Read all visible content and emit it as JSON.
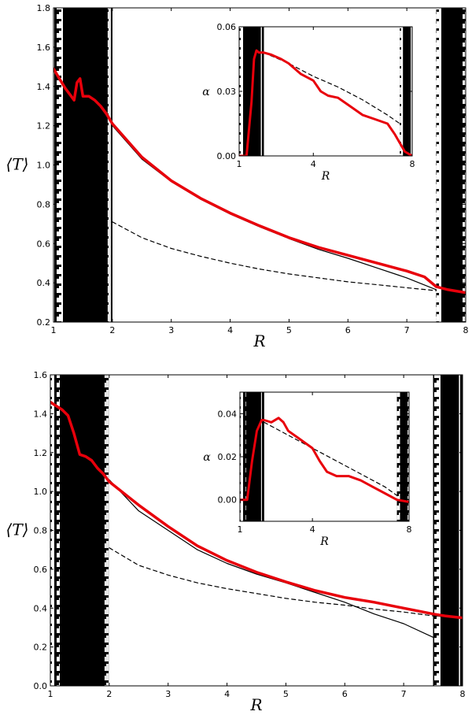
{
  "chart_data": [
    {
      "type": "line",
      "panel": "top",
      "xlabel": "R",
      "ylabel": "⟨T⟩",
      "xlim": [
        1,
        8
      ],
      "ylim": [
        0.2,
        1.8
      ],
      "xticks": [
        "1",
        "2",
        "3",
        "4",
        "5",
        "6",
        "7",
        "8"
      ],
      "yticks": [
        "0.2",
        "0.4",
        "0.6",
        "0.8",
        "1.0",
        "1.2",
        "1.4",
        "1.6",
        "1.8"
      ],
      "shaded_regions": [
        [
          1,
          2
        ],
        [
          7.5,
          8
        ]
      ],
      "series": [
        {
          "style": "solid-black",
          "x": [
            2.0,
            2.5,
            3.0,
            3.5,
            4.0,
            4.5,
            5.0,
            5.5,
            6.0,
            6.5,
            7.0,
            7.5
          ],
          "y": [
            1.2,
            1.03,
            0.915,
            0.825,
            0.75,
            0.685,
            0.625,
            0.57,
            0.525,
            0.475,
            0.425,
            0.365
          ]
        },
        {
          "style": "dashed-black",
          "x": [
            2.0,
            2.5,
            3.0,
            3.5,
            4.0,
            4.5,
            5.0,
            5.5,
            6.0,
            6.5,
            7.0,
            7.5
          ],
          "y": [
            0.71,
            0.63,
            0.575,
            0.535,
            0.5,
            0.47,
            0.445,
            0.425,
            0.405,
            0.39,
            0.375,
            0.36
          ]
        },
        {
          "style": "thick-red",
          "x": [
            1.0,
            1.1,
            1.2,
            1.3,
            1.35,
            1.4,
            1.45,
            1.5,
            1.55,
            1.6,
            1.7,
            1.8,
            1.9,
            2.0,
            2.5,
            3.0,
            3.5,
            4.0,
            4.5,
            5.0,
            5.5,
            6.0,
            6.5,
            7.0,
            7.3,
            7.5,
            7.7,
            8.0
          ],
          "y": [
            1.49,
            1.44,
            1.39,
            1.35,
            1.33,
            1.42,
            1.44,
            1.35,
            1.35,
            1.35,
            1.33,
            1.3,
            1.26,
            1.21,
            1.04,
            0.92,
            0.83,
            0.755,
            0.69,
            0.63,
            0.58,
            0.54,
            0.5,
            0.46,
            0.43,
            0.38,
            0.365,
            0.35
          ]
        }
      ],
      "inset": {
        "xlabel": "R",
        "ylabel": "α",
        "xlim": [
          1,
          8
        ],
        "ylim": [
          0,
          0.06
        ],
        "xticks": [
          "1",
          "4",
          "8"
        ],
        "yticks": [
          "0.00",
          "0.03",
          "0.06"
        ],
        "shaded_regions": [
          [
            1,
            2
          ],
          [
            7.5,
            8
          ]
        ],
        "series": [
          {
            "style": "dashed-black",
            "x": [
              2.0,
              3.0,
              4.0,
              5.0,
              6.0,
              7.0,
              7.5
            ],
            "y": [
              0.048,
              0.043,
              0.037,
              0.032,
              0.026,
              0.019,
              0.015
            ]
          },
          {
            "style": "thick-red",
            "x": [
              1.0,
              1.3,
              1.5,
              1.6,
              1.7,
              1.8,
              2.0,
              2.3,
              2.7,
              3.0,
              3.5,
              4.0,
              4.3,
              4.6,
              5.0,
              5.5,
              6.0,
              6.5,
              7.0,
              7.3,
              7.5,
              7.7,
              8.0
            ],
            "y": [
              0.0,
              0.0,
              0.025,
              0.045,
              0.049,
              0.048,
              0.048,
              0.047,
              0.045,
              0.043,
              0.038,
              0.035,
              0.03,
              0.028,
              0.027,
              0.023,
              0.019,
              0.017,
              0.015,
              0.01,
              0.006,
              0.002,
              0.0
            ]
          }
        ]
      }
    },
    {
      "type": "line",
      "panel": "bottom",
      "xlabel": "R",
      "ylabel": "⟨T⟩",
      "xlim": [
        1,
        8
      ],
      "ylim": [
        0.0,
        1.6
      ],
      "xticks": [
        "1",
        "2",
        "3",
        "4",
        "5",
        "6",
        "7",
        "8"
      ],
      "yticks": [
        "0.0",
        "0.2",
        "0.4",
        "0.6",
        "0.8",
        "1.0",
        "1.2",
        "1.4",
        "1.6"
      ],
      "shaded_regions": [
        [
          1,
          2
        ],
        [
          7.5,
          8
        ]
      ],
      "series": [
        {
          "style": "solid-black",
          "x": [
            2.0,
            2.5,
            3.0,
            3.5,
            4.0,
            4.5,
            5.0,
            5.5,
            6.0,
            6.5,
            7.0,
            7.5
          ],
          "y": [
            1.06,
            0.9,
            0.8,
            0.7,
            0.63,
            0.575,
            0.53,
            0.48,
            0.43,
            0.37,
            0.32,
            0.25
          ]
        },
        {
          "style": "dashed-black",
          "x": [
            2.0,
            2.5,
            3.0,
            3.5,
            4.0,
            4.5,
            5.0,
            5.5,
            6.0,
            6.5,
            7.0,
            7.5,
            8.0
          ],
          "y": [
            0.71,
            0.62,
            0.57,
            0.53,
            0.5,
            0.475,
            0.45,
            0.43,
            0.415,
            0.395,
            0.38,
            0.36,
            0.35
          ]
        },
        {
          "style": "thick-red",
          "x": [
            1.0,
            1.1,
            1.2,
            1.3,
            1.4,
            1.5,
            1.6,
            1.7,
            1.8,
            1.9,
            2.0,
            2.5,
            3.0,
            3.5,
            4.0,
            4.5,
            5.0,
            5.5,
            6.0,
            6.5,
            7.0,
            7.5,
            7.7,
            8.0
          ],
          "y": [
            1.46,
            1.44,
            1.42,
            1.39,
            1.3,
            1.19,
            1.18,
            1.16,
            1.12,
            1.09,
            1.05,
            0.93,
            0.82,
            0.72,
            0.645,
            0.585,
            0.535,
            0.49,
            0.455,
            0.43,
            0.4,
            0.37,
            0.36,
            0.35
          ]
        }
      ],
      "inset": {
        "xlabel": "R",
        "ylabel": "α",
        "xlim": [
          1,
          8
        ],
        "ylim": [
          -0.01,
          0.05
        ],
        "xticks": [
          "1",
          "4",
          "8"
        ],
        "yticks": [
          "0.00",
          "0.02",
          "0.04"
        ],
        "shaded_regions": [
          [
            1,
            2
          ],
          [
            7.5,
            8
          ]
        ],
        "series": [
          {
            "style": "dashed-black",
            "x": [
              2.0,
              3.0,
              4.0,
              5.0,
              6.0,
              7.0,
              7.5,
              8.0
            ],
            "y": [
              0.036,
              0.03,
              0.024,
              0.018,
              0.012,
              0.006,
              0.002,
              0.0
            ]
          },
          {
            "style": "thick-red",
            "x": [
              1.0,
              1.3,
              1.5,
              1.7,
              1.9,
              2.0,
              2.3,
              2.6,
              2.8,
              3.0,
              3.5,
              4.0,
              4.3,
              4.6,
              5.0,
              5.5,
              6.0,
              6.5,
              7.0,
              7.5,
              8.0
            ],
            "y": [
              0.0,
              0.0,
              0.018,
              0.032,
              0.037,
              0.037,
              0.036,
              0.038,
              0.036,
              0.032,
              0.028,
              0.024,
              0.018,
              0.013,
              0.011,
              0.011,
              0.009,
              0.006,
              0.003,
              0.0,
              -0.001
            ]
          }
        ]
      }
    }
  ]
}
